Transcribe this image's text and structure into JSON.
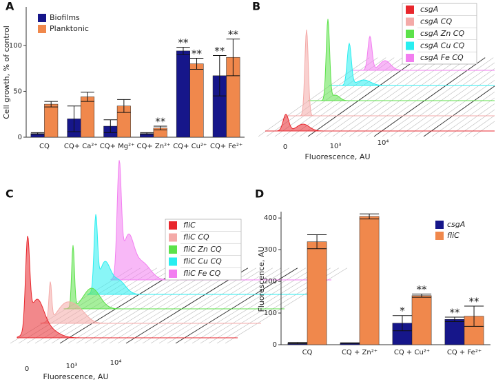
{
  "chart_data": [
    {
      "type": "bar",
      "panel": "A",
      "ylabel": "Cell growth, % of control",
      "categories": [
        "CQ",
        "CQ+ Ca²⁺",
        "CQ+ Mg²⁺",
        "CQ+ Zn²⁺",
        "CQ+ Cu²⁺",
        "CQ+ Fe²⁺"
      ],
      "series": [
        {
          "name": "Biofilms",
          "color": "#16168a",
          "values": [
            4,
            20,
            12,
            4,
            94,
            67
          ],
          "errors": [
            1,
            14,
            7,
            1,
            4,
            22
          ],
          "annotations": [
            null,
            null,
            null,
            null,
            "**",
            "**"
          ]
        },
        {
          "name": "Planktonic",
          "color": "#f0884c",
          "values": [
            36,
            44,
            34,
            10,
            80,
            87
          ],
          "errors": [
            3,
            5,
            7,
            2,
            6,
            20
          ],
          "annotations": [
            null,
            null,
            null,
            "**",
            "**",
            "**"
          ]
        }
      ],
      "ylim": [
        0,
        142
      ],
      "yticks": [
        0,
        50,
        100
      ]
    },
    {
      "type": "flow-histogram",
      "panel": "B",
      "xlabel": "Fluorescence, AU",
      "x_tick_labels": [
        "0",
        "10³",
        "10⁴"
      ],
      "series": [
        {
          "name": "csgA",
          "color": "#e8262c"
        },
        {
          "name": "csgA CQ",
          "color": "#f4aaa8"
        },
        {
          "name": "csgA Zn CQ",
          "color": "#5ce24a"
        },
        {
          "name": "csgA Cu CQ",
          "color": "#28eef0"
        },
        {
          "name": "csgA Fe CQ",
          "color": "#f27ef0"
        }
      ]
    },
    {
      "type": "flow-histogram",
      "panel": "C",
      "xlabel": "Fluorescence, AU",
      "x_tick_labels": [
        "0",
        "10³",
        "10⁴"
      ],
      "series": [
        {
          "name": "fliC",
          "color": "#e8262c"
        },
        {
          "name": "fliC CQ",
          "color": "#f4aaa8"
        },
        {
          "name": "fliC Zn CQ",
          "color": "#5ce24a"
        },
        {
          "name": "fliC Cu CQ",
          "color": "#28eef0"
        },
        {
          "name": "fliC Fe CQ",
          "color": "#f27ef0"
        }
      ]
    },
    {
      "type": "bar",
      "panel": "D",
      "ylabel": "Fluorescence, AU",
      "categories": [
        "CQ",
        "CQ + Zn²⁺",
        "CQ + Cu²⁺",
        "CQ + Fe²⁺"
      ],
      "series": [
        {
          "name": "csgA",
          "color": "#16168a",
          "values": [
            5,
            5,
            68,
            80
          ],
          "errors": [
            2,
            1,
            24,
            7
          ],
          "annotations": [
            null,
            null,
            "*",
            "**"
          ]
        },
        {
          "name": "fliC",
          "color": "#f0884c",
          "values": [
            325,
            405,
            155,
            90
          ],
          "errors": [
            22,
            8,
            5,
            32
          ],
          "annotations": [
            null,
            null,
            "**",
            "**"
          ]
        }
      ],
      "ylim": [
        0,
        420
      ],
      "yticks": [
        0,
        100,
        200,
        300,
        400
      ]
    }
  ]
}
